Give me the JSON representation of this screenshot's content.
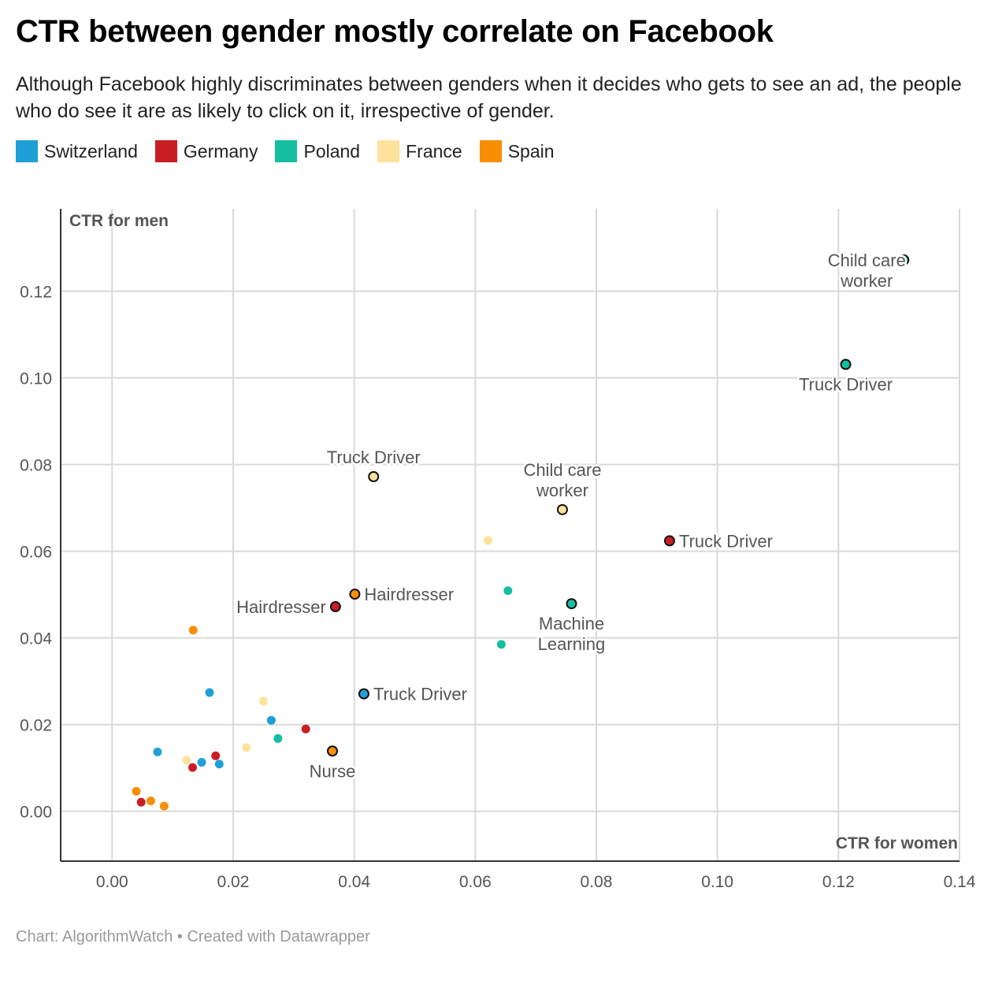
{
  "title": "CTR between gender mostly correlate on Facebook",
  "subtitle": "Although Facebook highly discriminates between genders when it decides who gets to see an ad, the people who do see it are as likely to click on it, irrespective of gender.",
  "legend": [
    {
      "name": "Switzerland",
      "color": "#1f9fd6"
    },
    {
      "name": "Germany",
      "color": "#c91d24"
    },
    {
      "name": "Poland",
      "color": "#14bfa1"
    },
    {
      "name": "France",
      "color": "#fee29c"
    },
    {
      "name": "Spain",
      "color": "#f98e06"
    }
  ],
  "footer": "Chart: AlgorithmWatch • Created with Datawrapper",
  "chart_data": {
    "type": "scatter",
    "xlabel": "CTR for women",
    "ylabel": "CTR for men",
    "xlim": [
      -0.0085,
      0.14
    ],
    "ylim": [
      -0.0115,
      0.139
    ],
    "xticks": [
      "0.00",
      "0.02",
      "0.04",
      "0.06",
      "0.08",
      "0.10",
      "0.12",
      "0.14"
    ],
    "xtick_values": [
      0,
      0.02,
      0.04,
      0.06,
      0.08,
      0.1,
      0.12,
      0.14
    ],
    "yticks": [
      "0.00",
      "0.02",
      "0.04",
      "0.06",
      "0.08",
      "0.10",
      "0.12"
    ],
    "ytick_values": [
      0,
      0.02,
      0.04,
      0.06,
      0.08,
      0.1,
      0.12
    ],
    "grid": true,
    "series": [
      {
        "name": "Switzerland",
        "color": "#1f9fd6",
        "points": [
          {
            "x": 0.0075,
            "y": 0.0137
          },
          {
            "x": 0.0148,
            "y": 0.0113
          },
          {
            "x": 0.0161,
            "y": 0.0274
          },
          {
            "x": 0.0177,
            "y": 0.0109
          },
          {
            "x": 0.0263,
            "y": 0.021
          },
          {
            "x": 0.0416,
            "y": 0.0271,
            "label": "Truck Driver",
            "highlight": true
          }
        ]
      },
      {
        "name": "Germany",
        "color": "#c91d24",
        "points": [
          {
            "x": 0.0048,
            "y": 0.0021
          },
          {
            "x": 0.0133,
            "y": 0.0101
          },
          {
            "x": 0.0171,
            "y": 0.0128
          },
          {
            "x": 0.032,
            "y": 0.019
          },
          {
            "x": 0.0369,
            "y": 0.0472,
            "label": "Hairdresser",
            "highlight": true
          },
          {
            "x": 0.0921,
            "y": 0.0624,
            "label": "Truck Driver",
            "highlight": true
          }
        ]
      },
      {
        "name": "Poland",
        "color": "#14bfa1",
        "points": [
          {
            "x": 0.0274,
            "y": 0.0168
          },
          {
            "x": 0.0643,
            "y": 0.0385
          },
          {
            "x": 0.0654,
            "y": 0.0509
          },
          {
            "x": 0.0759,
            "y": 0.0479,
            "label": "Machine Learning",
            "highlight": true
          },
          {
            "x": 0.1212,
            "y": 0.1031,
            "label": "Truck Driver",
            "highlight": true
          },
          {
            "x": 0.1308,
            "y": 0.1272,
            "label": "Child care worker",
            "highlight": true
          }
        ]
      },
      {
        "name": "France",
        "color": "#fee29c",
        "points": [
          {
            "x": 0.0123,
            "y": 0.0118
          },
          {
            "x": 0.0222,
            "y": 0.0147
          },
          {
            "x": 0.025,
            "y": 0.0254
          },
          {
            "x": 0.0621,
            "y": 0.0625
          },
          {
            "x": 0.0432,
            "y": 0.0772,
            "label": "Truck Driver",
            "highlight": true
          },
          {
            "x": 0.0744,
            "y": 0.0696,
            "label": "Child care worker",
            "highlight": true
          }
        ]
      },
      {
        "name": "Spain",
        "color": "#f98e06",
        "points": [
          {
            "x": 0.004,
            "y": 0.0046
          },
          {
            "x": 0.0064,
            "y": 0.0024
          },
          {
            "x": 0.0086,
            "y": 0.0012
          },
          {
            "x": 0.0134,
            "y": 0.0418
          },
          {
            "x": 0.0364,
            "y": 0.0139,
            "label": "Nurse",
            "highlight": true
          },
          {
            "x": 0.0401,
            "y": 0.0501,
            "label": "Hairdresser",
            "highlight": true
          }
        ]
      }
    ]
  }
}
